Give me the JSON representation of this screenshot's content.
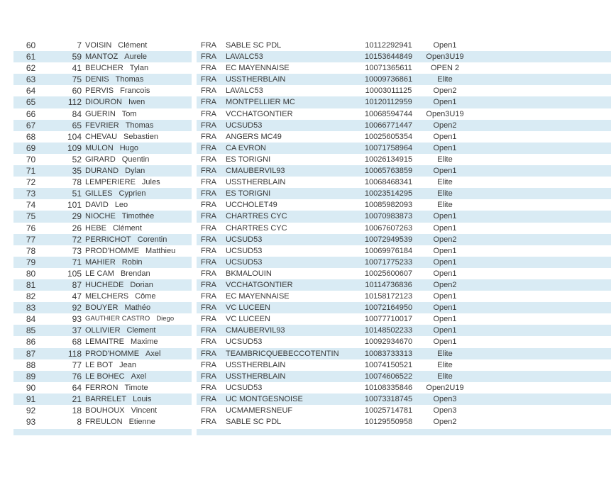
{
  "colors": {
    "stripe": "#d9ebf4",
    "text": "#383838"
  },
  "table": {
    "columns": [
      "rank",
      "bib",
      "last_name",
      "first_name",
      "country",
      "club",
      "license",
      "category"
    ],
    "rows": [
      {
        "rank": "60",
        "bib": "7",
        "last": "VOISIN",
        "first": "Clément",
        "country": "FRA",
        "club": "SABLE SC PDL",
        "license": "10112292941",
        "category": "Open1",
        "shaded": false
      },
      {
        "rank": "61",
        "bib": "59",
        "last": "MANTOZ",
        "first": "Aurele",
        "country": "FRA",
        "club": "LAVALC53",
        "license": "10153644849",
        "category": "Open3U19",
        "shaded": true
      },
      {
        "rank": "62",
        "bib": "41",
        "last": "BEUCHER",
        "first": "Tylan",
        "country": "FRA",
        "club": "EC MAYENNAISE",
        "license": "10071365611",
        "category": "OPEN 2",
        "shaded": false
      },
      {
        "rank": "63",
        "bib": "75",
        "last": "DENIS",
        "first": "Thomas",
        "country": "FRA",
        "club": "USSTHERBLAIN",
        "license": "10009736861",
        "category": "Elite",
        "shaded": true
      },
      {
        "rank": "64",
        "bib": "60",
        "last": "PERVIS",
        "first": "Francois",
        "country": "FRA",
        "club": "LAVALC53",
        "license": "10003011125",
        "category": "Open2",
        "shaded": false
      },
      {
        "rank": "65",
        "bib": "112",
        "last": "DIOURON",
        "first": "Iwen",
        "country": "FRA",
        "club": "MONTPELLIER MC",
        "license": "10120112959",
        "category": "Open1",
        "shaded": true
      },
      {
        "rank": "66",
        "bib": "84",
        "last": "GUERIN",
        "first": "Tom",
        "country": "FRA",
        "club": "VCCHATGONTIER",
        "license": "10068594744",
        "category": "Open3U19",
        "shaded": false
      },
      {
        "rank": "67",
        "bib": "65",
        "last": "FEVRIER",
        "first": "Thomas",
        "country": "FRA",
        "club": "UCSUD53",
        "license": "10066771447",
        "category": "Open2",
        "shaded": true
      },
      {
        "rank": "68",
        "bib": "104",
        "last": "CHEVAU",
        "first": "Sebastien",
        "country": "FRA",
        "club": "ANGERS MC49",
        "license": "10025605354",
        "category": "Open1",
        "shaded": false
      },
      {
        "rank": "69",
        "bib": "109",
        "last": "MULON",
        "first": "Hugo",
        "country": "FRA",
        "club": "CA EVRON",
        "license": "10071758964",
        "category": "Open1",
        "shaded": true
      },
      {
        "rank": "70",
        "bib": "52",
        "last": "GIRARD",
        "first": "Quentin",
        "country": "FRA",
        "club": "ES TORIGNI",
        "license": "10026134915",
        "category": "Elite",
        "shaded": false
      },
      {
        "rank": "71",
        "bib": "35",
        "last": "DURAND",
        "first": "Dylan",
        "country": "FRA",
        "club": "CMAUBERVIL93",
        "license": "10065763859",
        "category": "Open1",
        "shaded": true
      },
      {
        "rank": "72",
        "bib": "78",
        "last": "LEMPERIERE",
        "first": "Jules",
        "country": "FRA",
        "club": "USSTHERBLAIN",
        "license": "10068468341",
        "category": "Elite",
        "shaded": false
      },
      {
        "rank": "73",
        "bib": "51",
        "last": "GILLES",
        "first": "Cyprien",
        "country": "FRA",
        "club": "ES TORIGNI",
        "license": "10023514295",
        "category": "Elite",
        "shaded": true
      },
      {
        "rank": "74",
        "bib": "101",
        "last": "DAVID",
        "first": "Leo",
        "country": "FRA",
        "club": "UCCHOLET49",
        "license": "10085982093",
        "category": "Elite",
        "shaded": false
      },
      {
        "rank": "75",
        "bib": "29",
        "last": "NIOCHE",
        "first": "Timothée",
        "country": "FRA",
        "club": "CHARTRES CYC",
        "license": "10070983873",
        "category": "Open1",
        "shaded": true
      },
      {
        "rank": "76",
        "bib": "26",
        "last": "HEBE",
        "first": "Clément",
        "country": "FRA",
        "club": "CHARTRES CYC",
        "license": "10067607263",
        "category": "Open1",
        "shaded": false
      },
      {
        "rank": "77",
        "bib": "72",
        "last": "PERRICHOT",
        "first": "Corentin",
        "country": "FRA",
        "club": "UCSUD53",
        "license": "10072949539",
        "category": "Open2",
        "shaded": true
      },
      {
        "rank": "78",
        "bib": "73",
        "last": "PROD'HOMME",
        "first": "Matthieu",
        "country": "FRA",
        "club": "UCSUD53",
        "license": "10069976184",
        "category": "Open1",
        "shaded": false
      },
      {
        "rank": "79",
        "bib": "71",
        "last": "MAHIER",
        "first": "Robin",
        "country": "FRA",
        "club": "UCSUD53",
        "license": "10071775233",
        "category": "Open1",
        "shaded": true
      },
      {
        "rank": "80",
        "bib": "105",
        "last": "LE CAM",
        "first": "Brendan",
        "country": "FRA",
        "club": "BKMALOUIN",
        "license": "10025600607",
        "category": "Open1",
        "shaded": false
      },
      {
        "rank": "81",
        "bib": "87",
        "last": "HUCHEDE",
        "first": "Dorian",
        "country": "FRA",
        "club": "VCCHATGONTIER",
        "license": "10114736836",
        "category": "Open2",
        "shaded": true
      },
      {
        "rank": "82",
        "bib": "47",
        "last": "MELCHERS",
        "first": "Côme",
        "country": "FRA",
        "club": "EC MAYENNAISE",
        "license": "10158172123",
        "category": "Open1",
        "shaded": false
      },
      {
        "rank": "83",
        "bib": "92",
        "last": "BOUYER",
        "first": "Mathéo",
        "country": "FRA",
        "club": "VC LUCEEN",
        "license": "10072164950",
        "category": "Open1",
        "shaded": true
      },
      {
        "rank": "84",
        "bib": "93",
        "last": "GAUTHIER CASTRO",
        "first": "Diego",
        "country": "FRA",
        "club": "VC LUCEEN",
        "license": "10077710017",
        "category": "Open1",
        "shaded": false,
        "small_name": true
      },
      {
        "rank": "85",
        "bib": "37",
        "last": "OLLIVIER",
        "first": "Clement",
        "country": "FRA",
        "club": "CMAUBERVIL93",
        "license": "10148502233",
        "category": "Open1",
        "shaded": true
      },
      {
        "rank": "86",
        "bib": "68",
        "last": "LEMAITRE",
        "first": "Maxime",
        "country": "FRA",
        "club": "UCSUD53",
        "license": "10092934670",
        "category": "Open1",
        "shaded": false
      },
      {
        "rank": "87",
        "bib": "118",
        "last": "PROD'HOMME",
        "first": "Axel",
        "country": "FRA",
        "club": "TEAMBRICQUEBECCOTENTIN",
        "license": "10083733313",
        "category": "Elite",
        "shaded": true
      },
      {
        "rank": "88",
        "bib": "77",
        "last": "LE BOT",
        "first": "Jean",
        "country": "FRA",
        "club": "USSTHERBLAIN",
        "license": "10074150521",
        "category": "Elite",
        "shaded": false
      },
      {
        "rank": "89",
        "bib": "76",
        "last": "LE BOHEC",
        "first": "Axel",
        "country": "FRA",
        "club": "USSTHERBLAIN",
        "license": "10074606522",
        "category": "Elite",
        "shaded": true
      },
      {
        "rank": "90",
        "bib": "64",
        "last": "FERRON",
        "first": "Timote",
        "country": "FRA",
        "club": "UCSUD53",
        "license": "10108335846",
        "category": "Open2U19",
        "shaded": false
      },
      {
        "rank": "91",
        "bib": "21",
        "last": "BARRELET",
        "first": "Louis",
        "country": "FRA",
        "club": "UC MONTGESNOISE",
        "license": "10073318745",
        "category": "Open3",
        "shaded": true
      },
      {
        "rank": "92",
        "bib": "18",
        "last": "BOUHOUX",
        "first": "Vincent",
        "country": "FRA",
        "club": "UCMAMERSNEUF",
        "license": "10025714781",
        "category": "Open3",
        "shaded": false
      },
      {
        "rank": "93",
        "bib": "8",
        "last": "FREULON",
        "first": "Etienne",
        "country": "FRA",
        "club": "SABLE SC PDL",
        "license": "10129550958",
        "category": "Open2",
        "shaded": false
      }
    ],
    "trailing_empty_stripe": true
  }
}
